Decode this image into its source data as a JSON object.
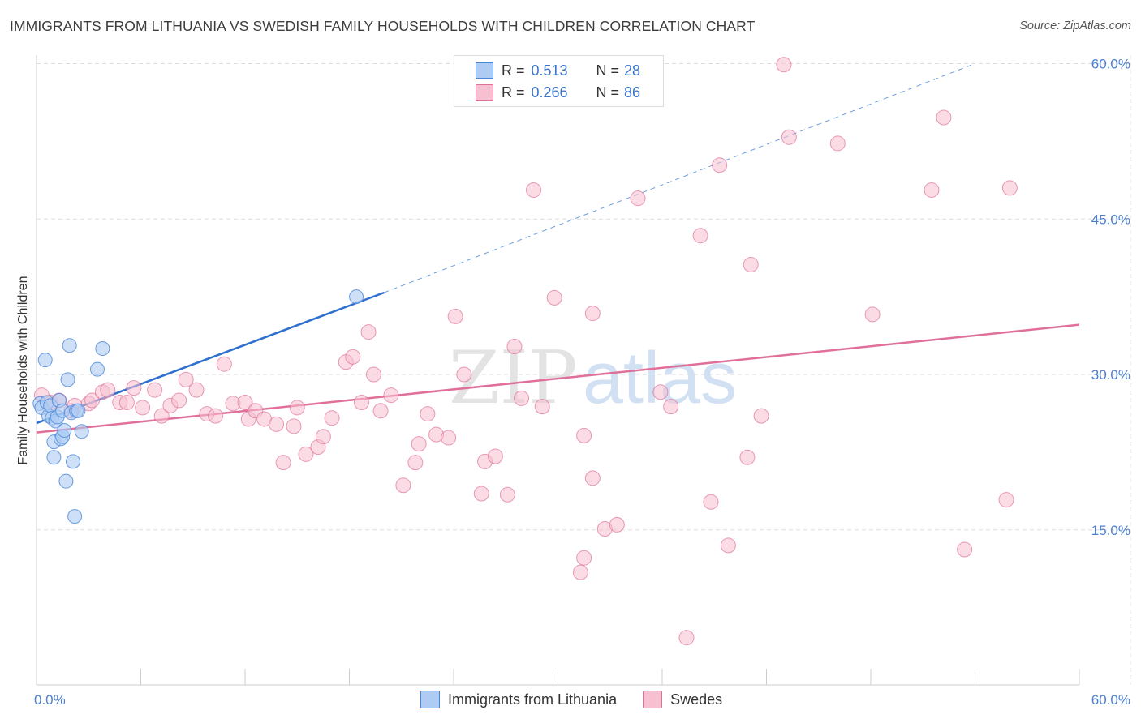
{
  "title": "IMMIGRANTS FROM LITHUANIA VS SWEDISH FAMILY HOUSEHOLDS WITH CHILDREN CORRELATION CHART",
  "source": "Source: ZipAtlas.com",
  "watermark": {
    "zip": "ZIP",
    "atlas": "atlas"
  },
  "colors": {
    "blue": "#4a86d8",
    "blue_fill": "#aecbf3",
    "pink": "#e0709a",
    "pink_fill": "#f7c0d0",
    "accent_text": "#4a7ed0",
    "grid": "#dddddd"
  },
  "legend": {
    "rows": [
      {
        "r_label": "R =",
        "r_value": "0.513",
        "n_label": "N =",
        "n_value": "28"
      },
      {
        "r_label": "R =",
        "r_value": "0.266",
        "n_label": "N =",
        "n_value": "86"
      }
    ]
  },
  "bottom_legend": [
    "Immigrants from Lithuania",
    "Swedes"
  ],
  "chart_data": {
    "type": "scatter",
    "xlabel": "",
    "ylabel": "Family Households with Children",
    "xlim": [
      0,
      60
    ],
    "ylim": [
      0,
      60
    ],
    "x_tick_labels": [
      "0.0%",
      "60.0%"
    ],
    "y_ticks": [
      15,
      30,
      45,
      60
    ],
    "y_tick_labels": [
      "15.0%",
      "30.0%",
      "45.0%",
      "60.0%"
    ],
    "grid": true,
    "legend_position": "top-center",
    "series": [
      {
        "name": "Immigrants from Lithuania",
        "color": "#4a86d8",
        "trend": {
          "x": [
            0,
            20
          ],
          "y": [
            25.3,
            37.9
          ],
          "extended_to": [
            54,
            60.0
          ]
        },
        "points": [
          [
            0.2,
            27.2
          ],
          [
            0.3,
            26.8
          ],
          [
            0.5,
            31.4
          ],
          [
            0.6,
            27.3
          ],
          [
            0.7,
            26.0
          ],
          [
            0.8,
            27.0
          ],
          [
            0.9,
            25.8
          ],
          [
            1.0,
            23.5
          ],
          [
            1.0,
            22.0
          ],
          [
            1.1,
            25.5
          ],
          [
            1.2,
            25.9
          ],
          [
            1.3,
            27.5
          ],
          [
            1.4,
            23.8
          ],
          [
            1.5,
            24.0
          ],
          [
            1.5,
            26.5
          ],
          [
            1.6,
            24.6
          ],
          [
            1.7,
            19.7
          ],
          [
            1.8,
            29.5
          ],
          [
            1.9,
            32.8
          ],
          [
            2.0,
            26.3
          ],
          [
            2.1,
            21.6
          ],
          [
            2.2,
            16.3
          ],
          [
            2.3,
            26.5
          ],
          [
            2.4,
            26.5
          ],
          [
            2.6,
            24.5
          ],
          [
            3.5,
            30.5
          ],
          [
            3.8,
            32.5
          ],
          [
            18.4,
            37.5
          ]
        ]
      },
      {
        "name": "Swedes",
        "color": "#e0709a",
        "trend": {
          "x": [
            0,
            60
          ],
          "y": [
            24.4,
            34.8
          ]
        },
        "points": [
          [
            0.3,
            28.0
          ],
          [
            0.8,
            27.3
          ],
          [
            1.3,
            27.5
          ],
          [
            2.0,
            26.5
          ],
          [
            2.2,
            27.0
          ],
          [
            3.0,
            27.2
          ],
          [
            3.2,
            27.5
          ],
          [
            3.8,
            28.3
          ],
          [
            4.1,
            28.5
          ],
          [
            4.8,
            27.3
          ],
          [
            5.2,
            27.3
          ],
          [
            5.6,
            28.7
          ],
          [
            6.1,
            26.8
          ],
          [
            6.8,
            28.5
          ],
          [
            7.2,
            26.0
          ],
          [
            7.7,
            27.0
          ],
          [
            8.2,
            27.5
          ],
          [
            8.6,
            29.5
          ],
          [
            9.2,
            28.5
          ],
          [
            9.8,
            26.2
          ],
          [
            10.3,
            26.0
          ],
          [
            10.8,
            31.0
          ],
          [
            11.3,
            27.2
          ],
          [
            12.0,
            27.3
          ],
          [
            12.2,
            25.7
          ],
          [
            12.6,
            26.5
          ],
          [
            13.1,
            25.7
          ],
          [
            13.8,
            25.2
          ],
          [
            14.2,
            21.5
          ],
          [
            14.8,
            25.0
          ],
          [
            15.0,
            26.8
          ],
          [
            15.5,
            22.3
          ],
          [
            16.2,
            23.0
          ],
          [
            16.5,
            24.0
          ],
          [
            17.0,
            25.8
          ],
          [
            17.8,
            31.2
          ],
          [
            18.2,
            31.7
          ],
          [
            18.7,
            27.3
          ],
          [
            19.1,
            34.1
          ],
          [
            19.4,
            30.0
          ],
          [
            19.8,
            26.5
          ],
          [
            20.4,
            28.0
          ],
          [
            21.1,
            19.3
          ],
          [
            21.8,
            21.5
          ],
          [
            22.0,
            23.3
          ],
          [
            22.5,
            26.2
          ],
          [
            23.0,
            24.2
          ],
          [
            23.7,
            23.9
          ],
          [
            24.1,
            35.6
          ],
          [
            24.6,
            30.0
          ],
          [
            25.6,
            18.5
          ],
          [
            25.8,
            21.6
          ],
          [
            26.4,
            22.1
          ],
          [
            27.1,
            18.4
          ],
          [
            27.5,
            32.7
          ],
          [
            27.9,
            27.7
          ],
          [
            28.6,
            47.8
          ],
          [
            29.1,
            26.9
          ],
          [
            29.8,
            37.4
          ],
          [
            31.5,
            24.1
          ],
          [
            31.3,
            10.9
          ],
          [
            31.5,
            12.3
          ],
          [
            32.0,
            20.0
          ],
          [
            32.0,
            35.9
          ],
          [
            32.7,
            15.1
          ],
          [
            33.4,
            15.5
          ],
          [
            34.6,
            47.0
          ],
          [
            35.9,
            28.3
          ],
          [
            36.5,
            26.9
          ],
          [
            37.4,
            4.6
          ],
          [
            38.2,
            43.4
          ],
          [
            38.8,
            17.7
          ],
          [
            39.3,
            50.2
          ],
          [
            39.8,
            13.5
          ],
          [
            40.9,
            22.0
          ],
          [
            41.1,
            40.6
          ],
          [
            41.7,
            26.0
          ],
          [
            43.0,
            59.9
          ],
          [
            43.3,
            52.9
          ],
          [
            46.1,
            52.3
          ],
          [
            48.1,
            35.8
          ],
          [
            51.5,
            47.8
          ],
          [
            52.2,
            54.8
          ],
          [
            53.4,
            13.1
          ],
          [
            55.8,
            17.9
          ],
          [
            56.0,
            48.0
          ]
        ]
      }
    ]
  }
}
